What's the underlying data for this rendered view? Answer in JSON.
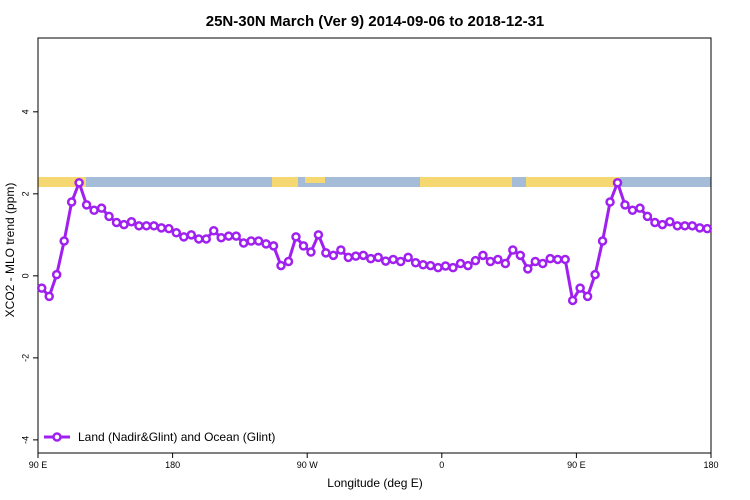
{
  "chart_data": {
    "type": "line",
    "title": "25N-30N March (Ver 9)   2014-09-06 to 2018-12-31",
    "x_label": "Longitude (deg E)",
    "y_label": "XCO2 - MLO trend (ppm)",
    "x": [
      92.5,
      97.5,
      102.5,
      107.5,
      112.5,
      117.5,
      122.5,
      127.5,
      132.5,
      137.5,
      142.5,
      147.5,
      152.5,
      157.5,
      162.5,
      167.5,
      172.5,
      177.5,
      182.5,
      187.5,
      192.5,
      197.5,
      202.5,
      207.5,
      212.5,
      217.5,
      222.5,
      227.5,
      232.5,
      237.5,
      242.5,
      247.5,
      252.5,
      257.5,
      262.5,
      267.5,
      272.5,
      277.5,
      282.5,
      287.5,
      292.5,
      297.5,
      302.5,
      307.5,
      312.5,
      317.5,
      322.5,
      327.5,
      332.5,
      337.5,
      342.5,
      347.5,
      352.5,
      357.5,
      362.5,
      367.5,
      372.5,
      377.5,
      382.5,
      387.5,
      392.5,
      397.5,
      402.5,
      407.5,
      412.5,
      417.5,
      422.5,
      427.5,
      432.5,
      437.5,
      442.5,
      447.5,
      452.5,
      457.5,
      462.5,
      467.5,
      472.5,
      477.5,
      482.5,
      487.5,
      492.5,
      497.5,
      502.5,
      507.5,
      512.5,
      517.5,
      522.5,
      527.5,
      532.5,
      537.5
    ],
    "series": [
      {
        "name": "Land (Nadir&Glint) and Ocean (Glint)",
        "color": "#a020f0",
        "values": [
          -0.3,
          -0.5,
          0.03,
          0.85,
          1.8,
          2.27,
          1.73,
          1.6,
          1.65,
          1.45,
          1.3,
          1.25,
          1.32,
          1.22,
          1.22,
          1.22,
          1.17,
          1.15,
          1.05,
          0.95,
          1.0,
          0.9,
          0.9,
          1.1,
          0.93,
          0.97,
          0.97,
          0.8,
          0.85,
          0.85,
          0.78,
          0.73,
          0.25,
          0.35,
          0.95,
          0.73,
          0.58,
          1.0,
          0.56,
          0.5,
          0.63,
          0.45,
          0.48,
          0.5,
          0.42,
          0.45,
          0.36,
          0.4,
          0.35,
          0.45,
          0.32,
          0.27,
          0.25,
          0.2,
          0.24,
          0.2,
          0.3,
          0.25,
          0.37,
          0.5,
          0.35,
          0.4,
          0.3,
          0.63,
          0.5,
          0.17,
          0.35,
          0.3,
          0.42,
          0.4,
          0.4,
          -0.6,
          -0.3,
          -0.5,
          0.03,
          0.85,
          1.8,
          2.27,
          1.73,
          1.6,
          1.65,
          1.45,
          1.3,
          1.25,
          1.32,
          1.22,
          1.22,
          1.22,
          1.17,
          1.15
        ]
      }
    ],
    "xlim": [
      90,
      540
    ],
    "xticks": [
      {
        "value": 90,
        "label": "90 E"
      },
      180,
      {
        "value": 270,
        "label": "90 W"
      },
      {
        "value": 360,
        "label": "0"
      },
      {
        "value": 450,
        "label": "90 E"
      },
      {
        "value": 540,
        "label": "180"
      }
    ],
    "ylim": [
      -4.32,
      5.8
    ],
    "yticks": [
      -4,
      -2,
      0,
      2,
      4
    ],
    "legend": "bottomleft"
  }
}
